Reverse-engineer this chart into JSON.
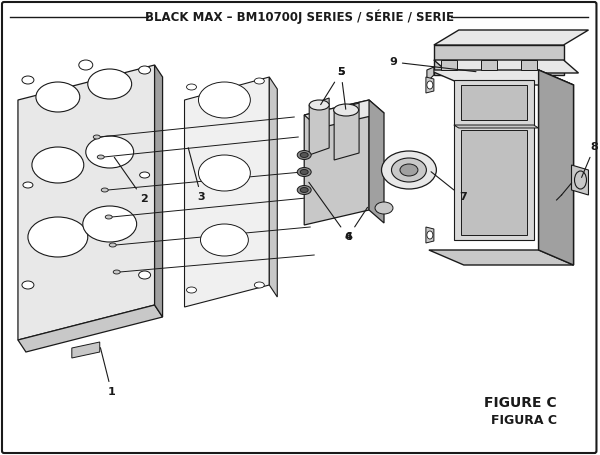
{
  "title": "BLACK MAX – BM10700J SERIES / SÉRIE / SERIE",
  "figure_label": "FIGURE C",
  "figura_label": "FIGURA C",
  "bg_color": "#ffffff",
  "line_color": "#1a1a1a",
  "fill_light": "#e8e8e8",
  "fill_mid": "#c8c8c8",
  "fill_dark": "#a0a0a0",
  "title_fontsize": 8.5,
  "label_fontsize": 8,
  "figure_label_fontsize": 10
}
